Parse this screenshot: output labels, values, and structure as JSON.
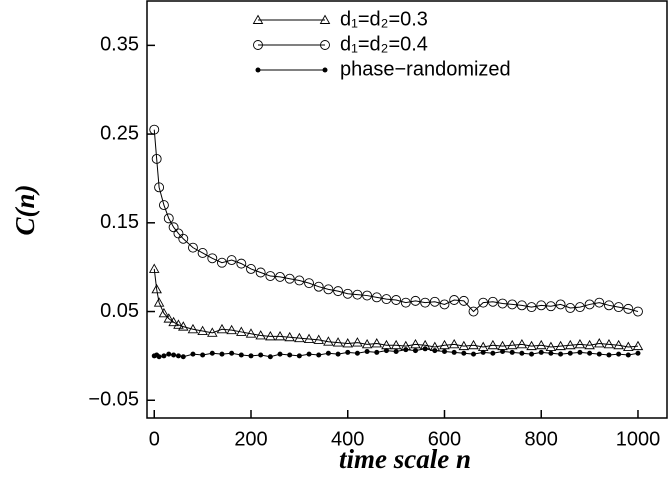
{
  "chart_data": {
    "type": "line",
    "xlabel": "time scale n",
    "ylabel": "C(n)",
    "x": [
      0,
      5,
      10,
      20,
      30,
      40,
      50,
      60,
      80,
      100,
      120,
      140,
      160,
      180,
      200,
      220,
      240,
      260,
      280,
      300,
      320,
      340,
      360,
      380,
      400,
      420,
      440,
      460,
      480,
      500,
      520,
      540,
      560,
      580,
      600,
      620,
      640,
      660,
      680,
      700,
      720,
      740,
      760,
      780,
      800,
      820,
      840,
      860,
      880,
      900,
      920,
      940,
      960,
      980,
      1000
    ],
    "series": [
      {
        "name": "d₁=d₂=0.3",
        "color": "#000000",
        "marker": "triangle",
        "values": [
          0.098,
          0.075,
          0.06,
          0.048,
          0.042,
          0.038,
          0.035,
          0.033,
          0.03,
          0.028,
          0.026,
          0.03,
          0.029,
          0.027,
          0.025,
          0.023,
          0.022,
          0.022,
          0.021,
          0.02,
          0.019,
          0.018,
          0.016,
          0.015,
          0.014,
          0.015,
          0.013,
          0.014,
          0.012,
          0.012,
          0.011,
          0.013,
          0.012,
          0.01,
          0.012,
          0.013,
          0.011,
          0.012,
          0.01,
          0.012,
          0.011,
          0.012,
          0.013,
          0.011,
          0.012,
          0.01,
          0.011,
          0.012,
          0.013,
          0.012,
          0.014,
          0.013,
          0.012,
          0.01,
          0.011
        ]
      },
      {
        "name": "d₁=d₂=0.4",
        "color": "#000000",
        "marker": "circle",
        "values": [
          0.255,
          0.222,
          0.19,
          0.17,
          0.155,
          0.145,
          0.138,
          0.132,
          0.122,
          0.116,
          0.11,
          0.105,
          0.108,
          0.104,
          0.098,
          0.094,
          0.09,
          0.089,
          0.087,
          0.085,
          0.082,
          0.078,
          0.075,
          0.073,
          0.07,
          0.069,
          0.068,
          0.066,
          0.064,
          0.063,
          0.06,
          0.062,
          0.06,
          0.061,
          0.058,
          0.063,
          0.062,
          0.05,
          0.06,
          0.061,
          0.059,
          0.058,
          0.057,
          0.055,
          0.057,
          0.056,
          0.058,
          0.054,
          0.055,
          0.058,
          0.06,
          0.057,
          0.055,
          0.053,
          0.05
        ]
      },
      {
        "name": "phase−randomized",
        "color": "#000000",
        "marker": "dot",
        "values": [
          0.0,
          0.001,
          -0.001,
          0.0,
          0.002,
          0.001,
          0.0,
          -0.001,
          0.002,
          0.001,
          0.003,
          0.002,
          0.003,
          0.001,
          0.0,
          0.001,
          -0.001,
          0.002,
          0.001,
          0.0,
          0.002,
          0.001,
          0.003,
          0.002,
          0.004,
          0.003,
          0.005,
          0.004,
          0.006,
          0.005,
          0.007,
          0.006,
          0.008,
          0.006,
          0.005,
          0.004,
          0.003,
          0.002,
          0.004,
          0.003,
          0.005,
          0.004,
          0.003,
          0.002,
          0.004,
          0.003,
          0.002,
          0.003,
          0.004,
          0.003,
          0.002,
          0.001,
          0.002,
          0.001,
          0.003
        ]
      }
    ],
    "xlim": [
      -15,
      1060
    ],
    "xticks": [
      0,
      200,
      400,
      600,
      800,
      1000
    ],
    "ylim": [
      -0.07,
      0.4
    ],
    "yticks": [
      {
        "value": -0.05,
        "label": "−0.05"
      },
      0.05,
      0.15,
      0.25,
      0.35
    ],
    "legend": "upper right",
    "grid": false
  }
}
